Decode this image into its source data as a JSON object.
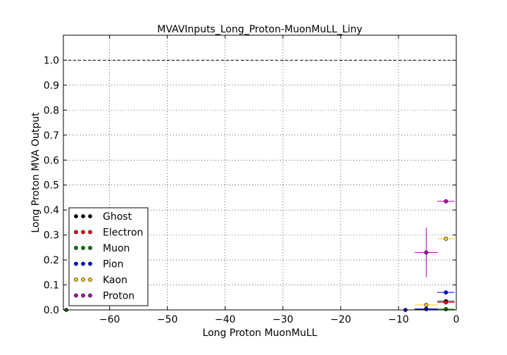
{
  "chart_data": {
    "type": "scatter",
    "title": "MVAVInputs_Long_Proton-MuonMuLL_Liny",
    "xlabel": "Long Proton MuonMuLL",
    "ylabel": "Long Proton MVA Output",
    "xlim": [
      -68,
      0
    ],
    "ylim": [
      0,
      1.1
    ],
    "x_ticks": [
      -60,
      -50,
      -40,
      -30,
      -20,
      -10,
      0
    ],
    "x_tick_labels": [
      "−60",
      "−50",
      "−40",
      "−30",
      "−20",
      "−10",
      "0"
    ],
    "y_ticks": [
      0.0,
      0.1,
      0.2,
      0.3,
      0.4,
      0.5,
      0.6,
      0.7,
      0.8,
      0.9,
      1.0
    ],
    "y_tick_labels": [
      "0.0",
      "0.1",
      "0.2",
      "0.3",
      "0.4",
      "0.5",
      "0.6",
      "0.7",
      "0.8",
      "0.9",
      "1.0"
    ],
    "grid": true,
    "reference_line": {
      "y": 1.0,
      "style": "dashed"
    },
    "legend_position": "lower-left",
    "series": [
      {
        "name": "Ghost",
        "color": "#000000",
        "points": [
          {
            "x": -1.8,
            "y": 0.035,
            "xerr": 1.5,
            "yerr": 0.004
          },
          {
            "x": -5.2,
            "y": 0.004,
            "xerr": 2.0,
            "yerr": 0.002
          }
        ]
      },
      {
        "name": "Electron",
        "color": "#ff0000",
        "points": [
          {
            "x": -1.8,
            "y": 0.03,
            "xerr": 1.5,
            "yerr": 0.003
          }
        ]
      },
      {
        "name": "Muon",
        "color": "#008000",
        "points": [
          {
            "x": -67.5,
            "y": 0.0,
            "xerr": 0.3,
            "yerr": 0.0
          },
          {
            "x": -1.8,
            "y": 0.003,
            "xerr": 1.5,
            "yerr": 0.001
          }
        ]
      },
      {
        "name": "Pion",
        "color": "#0000ff",
        "points": [
          {
            "x": -1.8,
            "y": 0.07,
            "xerr": 1.5,
            "yerr": 0.004
          },
          {
            "x": -5.2,
            "y": 0.003,
            "xerr": 2.0,
            "yerr": 0.001
          },
          {
            "x": -8.8,
            "y": 0.0,
            "xerr": 0.5,
            "yerr": 0.0
          }
        ]
      },
      {
        "name": "Kaon",
        "color": "#ffcc00",
        "points": [
          {
            "x": -1.8,
            "y": 0.285,
            "xerr": 1.5,
            "yerr": 0.005
          },
          {
            "x": -5.2,
            "y": 0.02,
            "xerr": 2.0,
            "yerr": 0.004
          }
        ]
      },
      {
        "name": "Proton",
        "color": "#bf00bf",
        "points": [
          {
            "x": -1.8,
            "y": 0.435,
            "xerr": 1.5,
            "yerr": 0.005
          },
          {
            "x": -5.2,
            "y": 0.23,
            "xerr": 2.0,
            "yerr": 0.1
          }
        ]
      }
    ]
  }
}
